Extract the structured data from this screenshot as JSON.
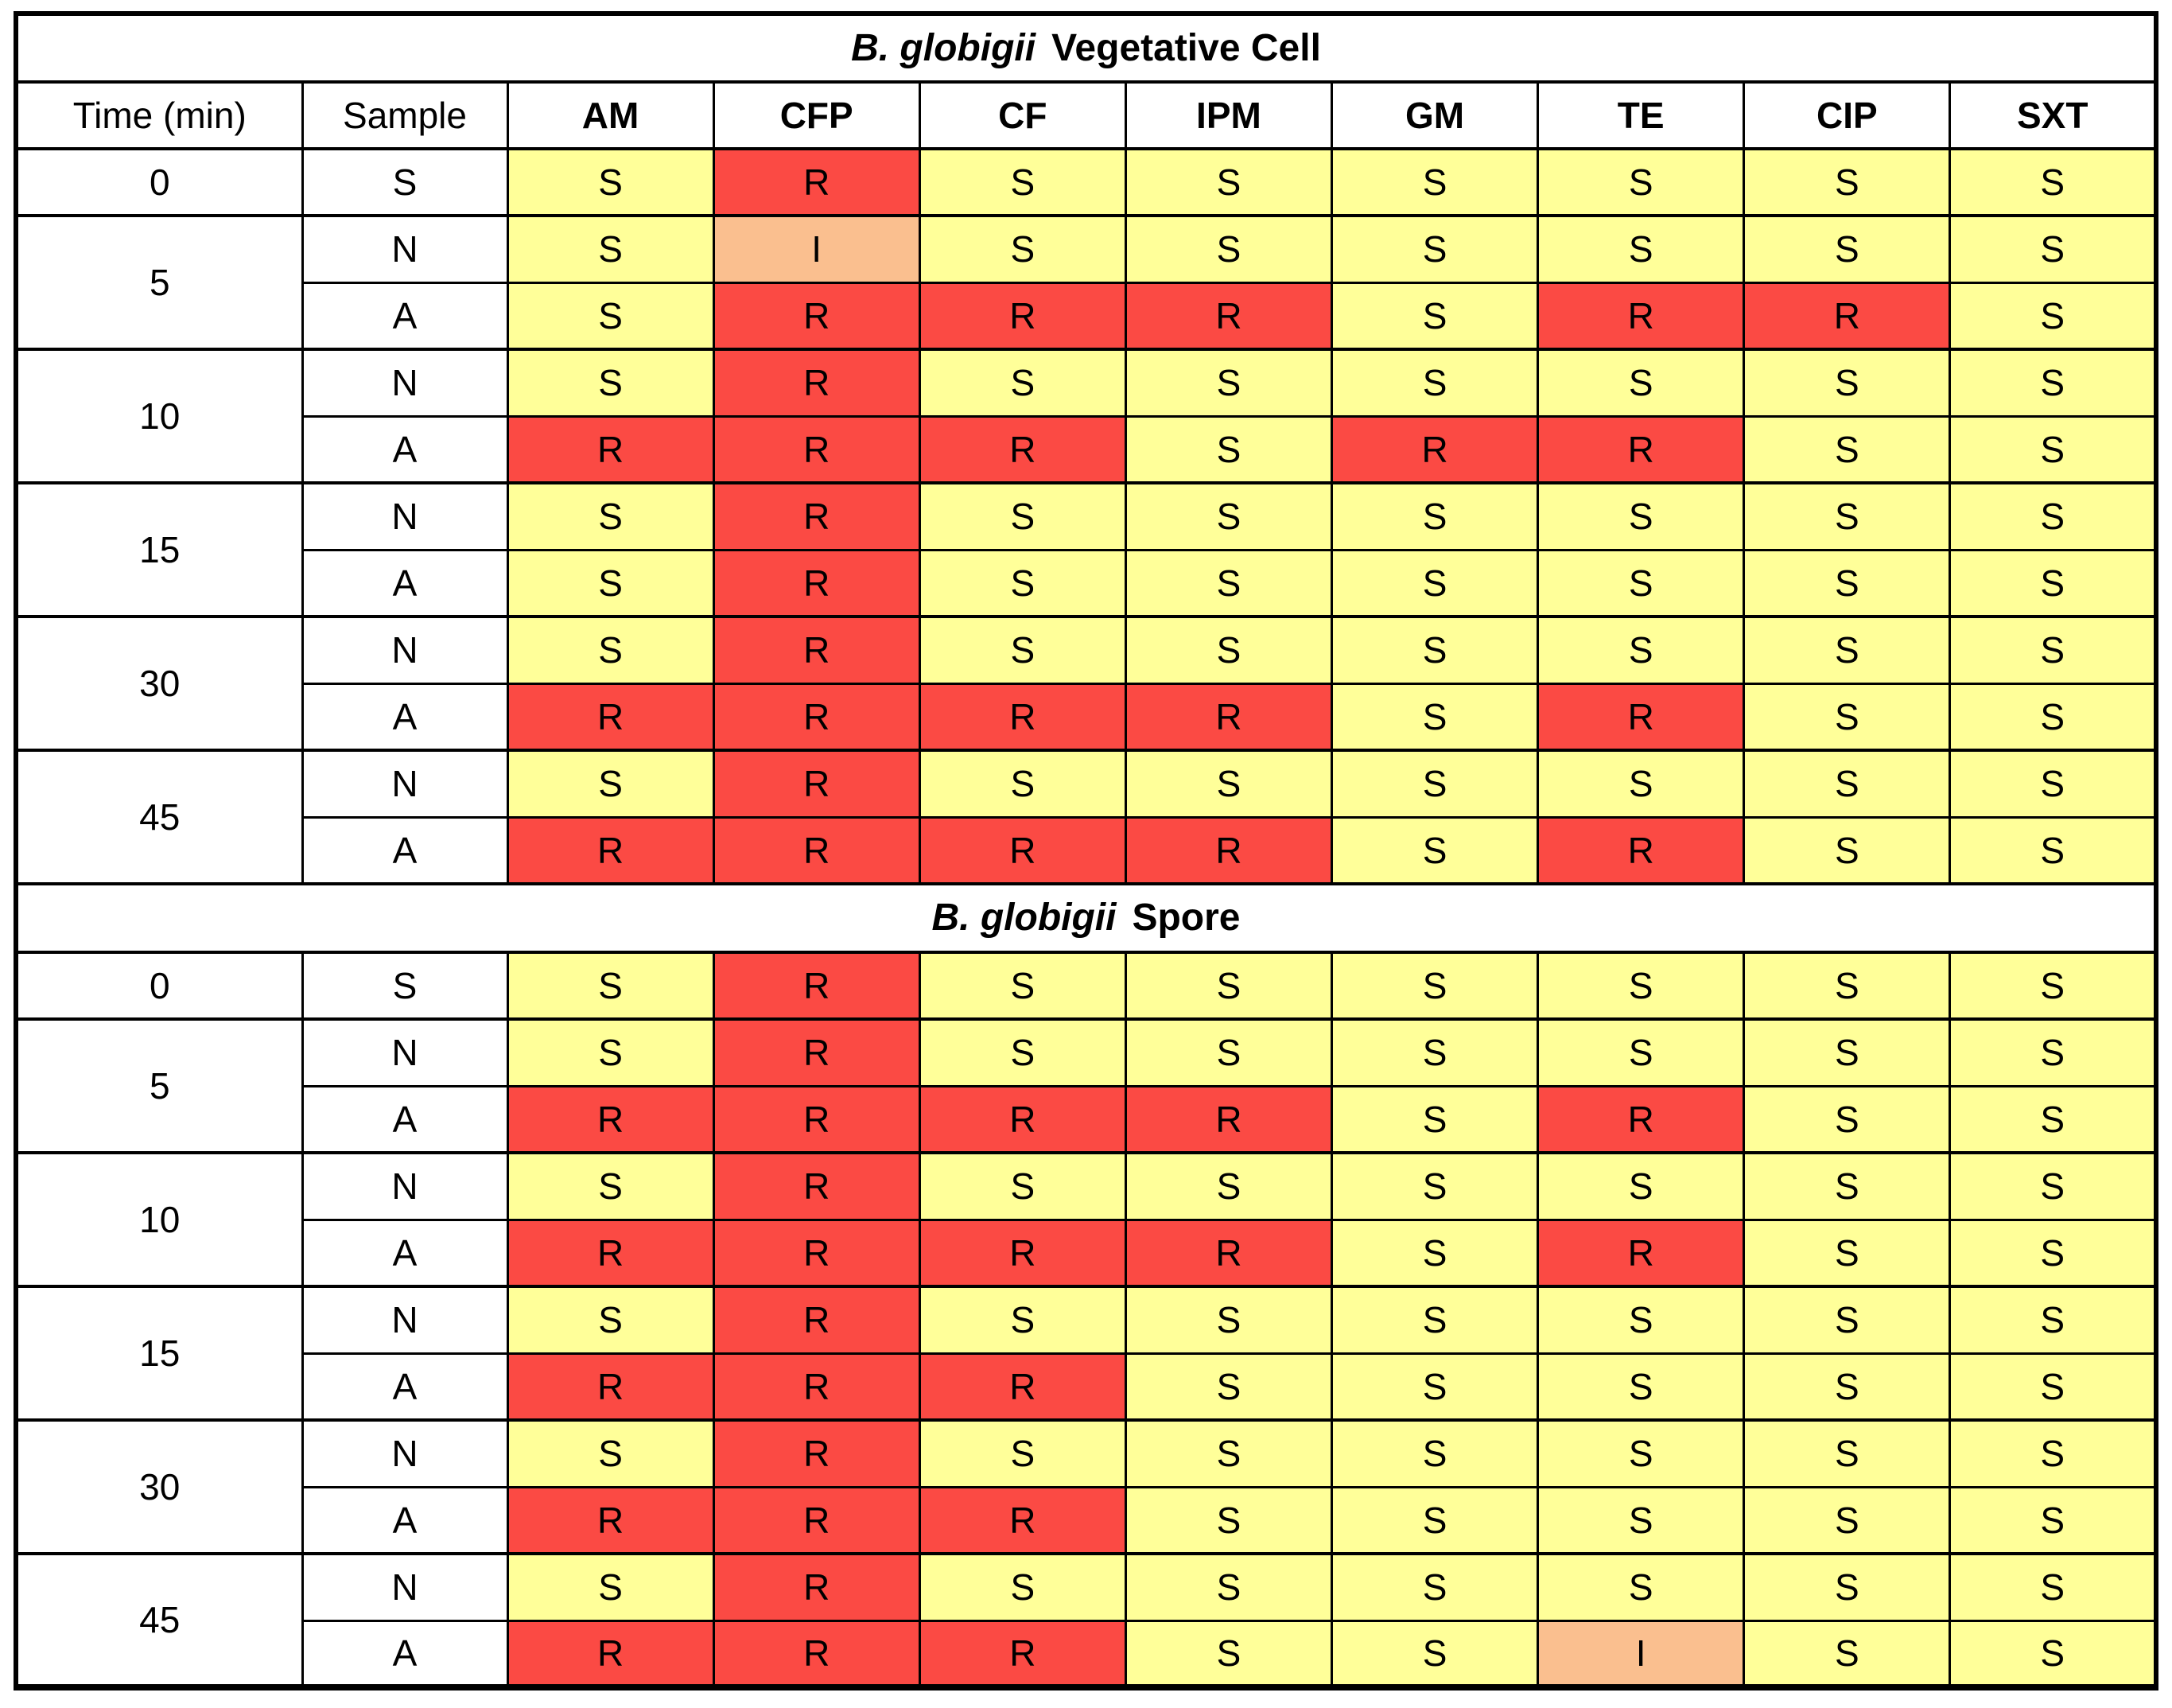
{
  "table": {
    "columns": [
      "Time (min)",
      "Sample",
      "AM",
      "CFP",
      "CF",
      "IPM",
      "GM",
      "TE",
      "CIP",
      "SXT"
    ],
    "plain_header_count": 2,
    "result_colors": {
      "S": "#FFFF99",
      "R": "#FB4A44",
      "I": "#FABF8F"
    },
    "grid_color": "#000000",
    "sections": [
      {
        "title_italic": "B. globigii",
        "title_rest": "Vegetative Cell",
        "groups": [
          {
            "time": "0",
            "rows": [
              {
                "sample": "S",
                "values": [
                  "S",
                  "R",
                  "S",
                  "S",
                  "S",
                  "S",
                  "S",
                  "S"
                ]
              }
            ]
          },
          {
            "time": "5",
            "rows": [
              {
                "sample": "N",
                "values": [
                  "S",
                  "I",
                  "S",
                  "S",
                  "S",
                  "S",
                  "S",
                  "S"
                ]
              },
              {
                "sample": "A",
                "values": [
                  "S",
                  "R",
                  "R",
                  "R",
                  "S",
                  "R",
                  "R",
                  "S"
                ]
              }
            ]
          },
          {
            "time": "10",
            "rows": [
              {
                "sample": "N",
                "values": [
                  "S",
                  "R",
                  "S",
                  "S",
                  "S",
                  "S",
                  "S",
                  "S"
                ]
              },
              {
                "sample": "A",
                "values": [
                  "R",
                  "R",
                  "R",
                  "S",
                  "R",
                  "R",
                  "S",
                  "S"
                ]
              }
            ]
          },
          {
            "time": "15",
            "rows": [
              {
                "sample": "N",
                "values": [
                  "S",
                  "R",
                  "S",
                  "S",
                  "S",
                  "S",
                  "S",
                  "S"
                ]
              },
              {
                "sample": "A",
                "values": [
                  "S",
                  "R",
                  "S",
                  "S",
                  "S",
                  "S",
                  "S",
                  "S"
                ]
              }
            ]
          },
          {
            "time": "30",
            "rows": [
              {
                "sample": "N",
                "values": [
                  "S",
                  "R",
                  "S",
                  "S",
                  "S",
                  "S",
                  "S",
                  "S"
                ]
              },
              {
                "sample": "A",
                "values": [
                  "R",
                  "R",
                  "R",
                  "R",
                  "S",
                  "R",
                  "S",
                  "S"
                ]
              }
            ]
          },
          {
            "time": "45",
            "rows": [
              {
                "sample": "N",
                "values": [
                  "S",
                  "R",
                  "S",
                  "S",
                  "S",
                  "S",
                  "S",
                  "S"
                ]
              },
              {
                "sample": "A",
                "values": [
                  "R",
                  "R",
                  "R",
                  "R",
                  "S",
                  "R",
                  "S",
                  "S"
                ]
              }
            ]
          }
        ]
      },
      {
        "title_italic": "B. globigii",
        "title_rest": "Spore",
        "groups": [
          {
            "time": "0",
            "rows": [
              {
                "sample": "S",
                "values": [
                  "S",
                  "R",
                  "S",
                  "S",
                  "S",
                  "S",
                  "S",
                  "S"
                ]
              }
            ]
          },
          {
            "time": "5",
            "rows": [
              {
                "sample": "N",
                "values": [
                  "S",
                  "R",
                  "S",
                  "S",
                  "S",
                  "S",
                  "S",
                  "S"
                ]
              },
              {
                "sample": "A",
                "values": [
                  "R",
                  "R",
                  "R",
                  "R",
                  "S",
                  "R",
                  "S",
                  "S"
                ]
              }
            ]
          },
          {
            "time": "10",
            "rows": [
              {
                "sample": "N",
                "values": [
                  "S",
                  "R",
                  "S",
                  "S",
                  "S",
                  "S",
                  "S",
                  "S"
                ]
              },
              {
                "sample": "A",
                "values": [
                  "R",
                  "R",
                  "R",
                  "R",
                  "S",
                  "R",
                  "S",
                  "S"
                ]
              }
            ]
          },
          {
            "time": "15",
            "rows": [
              {
                "sample": "N",
                "values": [
                  "S",
                  "R",
                  "S",
                  "S",
                  "S",
                  "S",
                  "S",
                  "S"
                ]
              },
              {
                "sample": "A",
                "values": [
                  "R",
                  "R",
                  "R",
                  "S",
                  "S",
                  "S",
                  "S",
                  "S"
                ]
              }
            ]
          },
          {
            "time": "30",
            "rows": [
              {
                "sample": "N",
                "values": [
                  "S",
                  "R",
                  "S",
                  "S",
                  "S",
                  "S",
                  "S",
                  "S"
                ]
              },
              {
                "sample": "A",
                "values": [
                  "R",
                  "R",
                  "R",
                  "S",
                  "S",
                  "S",
                  "S",
                  "S"
                ]
              }
            ]
          },
          {
            "time": "45",
            "rows": [
              {
                "sample": "N",
                "values": [
                  "S",
                  "R",
                  "S",
                  "S",
                  "S",
                  "S",
                  "S",
                  "S"
                ]
              },
              {
                "sample": "A",
                "values": [
                  "R",
                  "R",
                  "R",
                  "S",
                  "S",
                  "I",
                  "S",
                  "S"
                ]
              }
            ]
          }
        ]
      }
    ]
  }
}
